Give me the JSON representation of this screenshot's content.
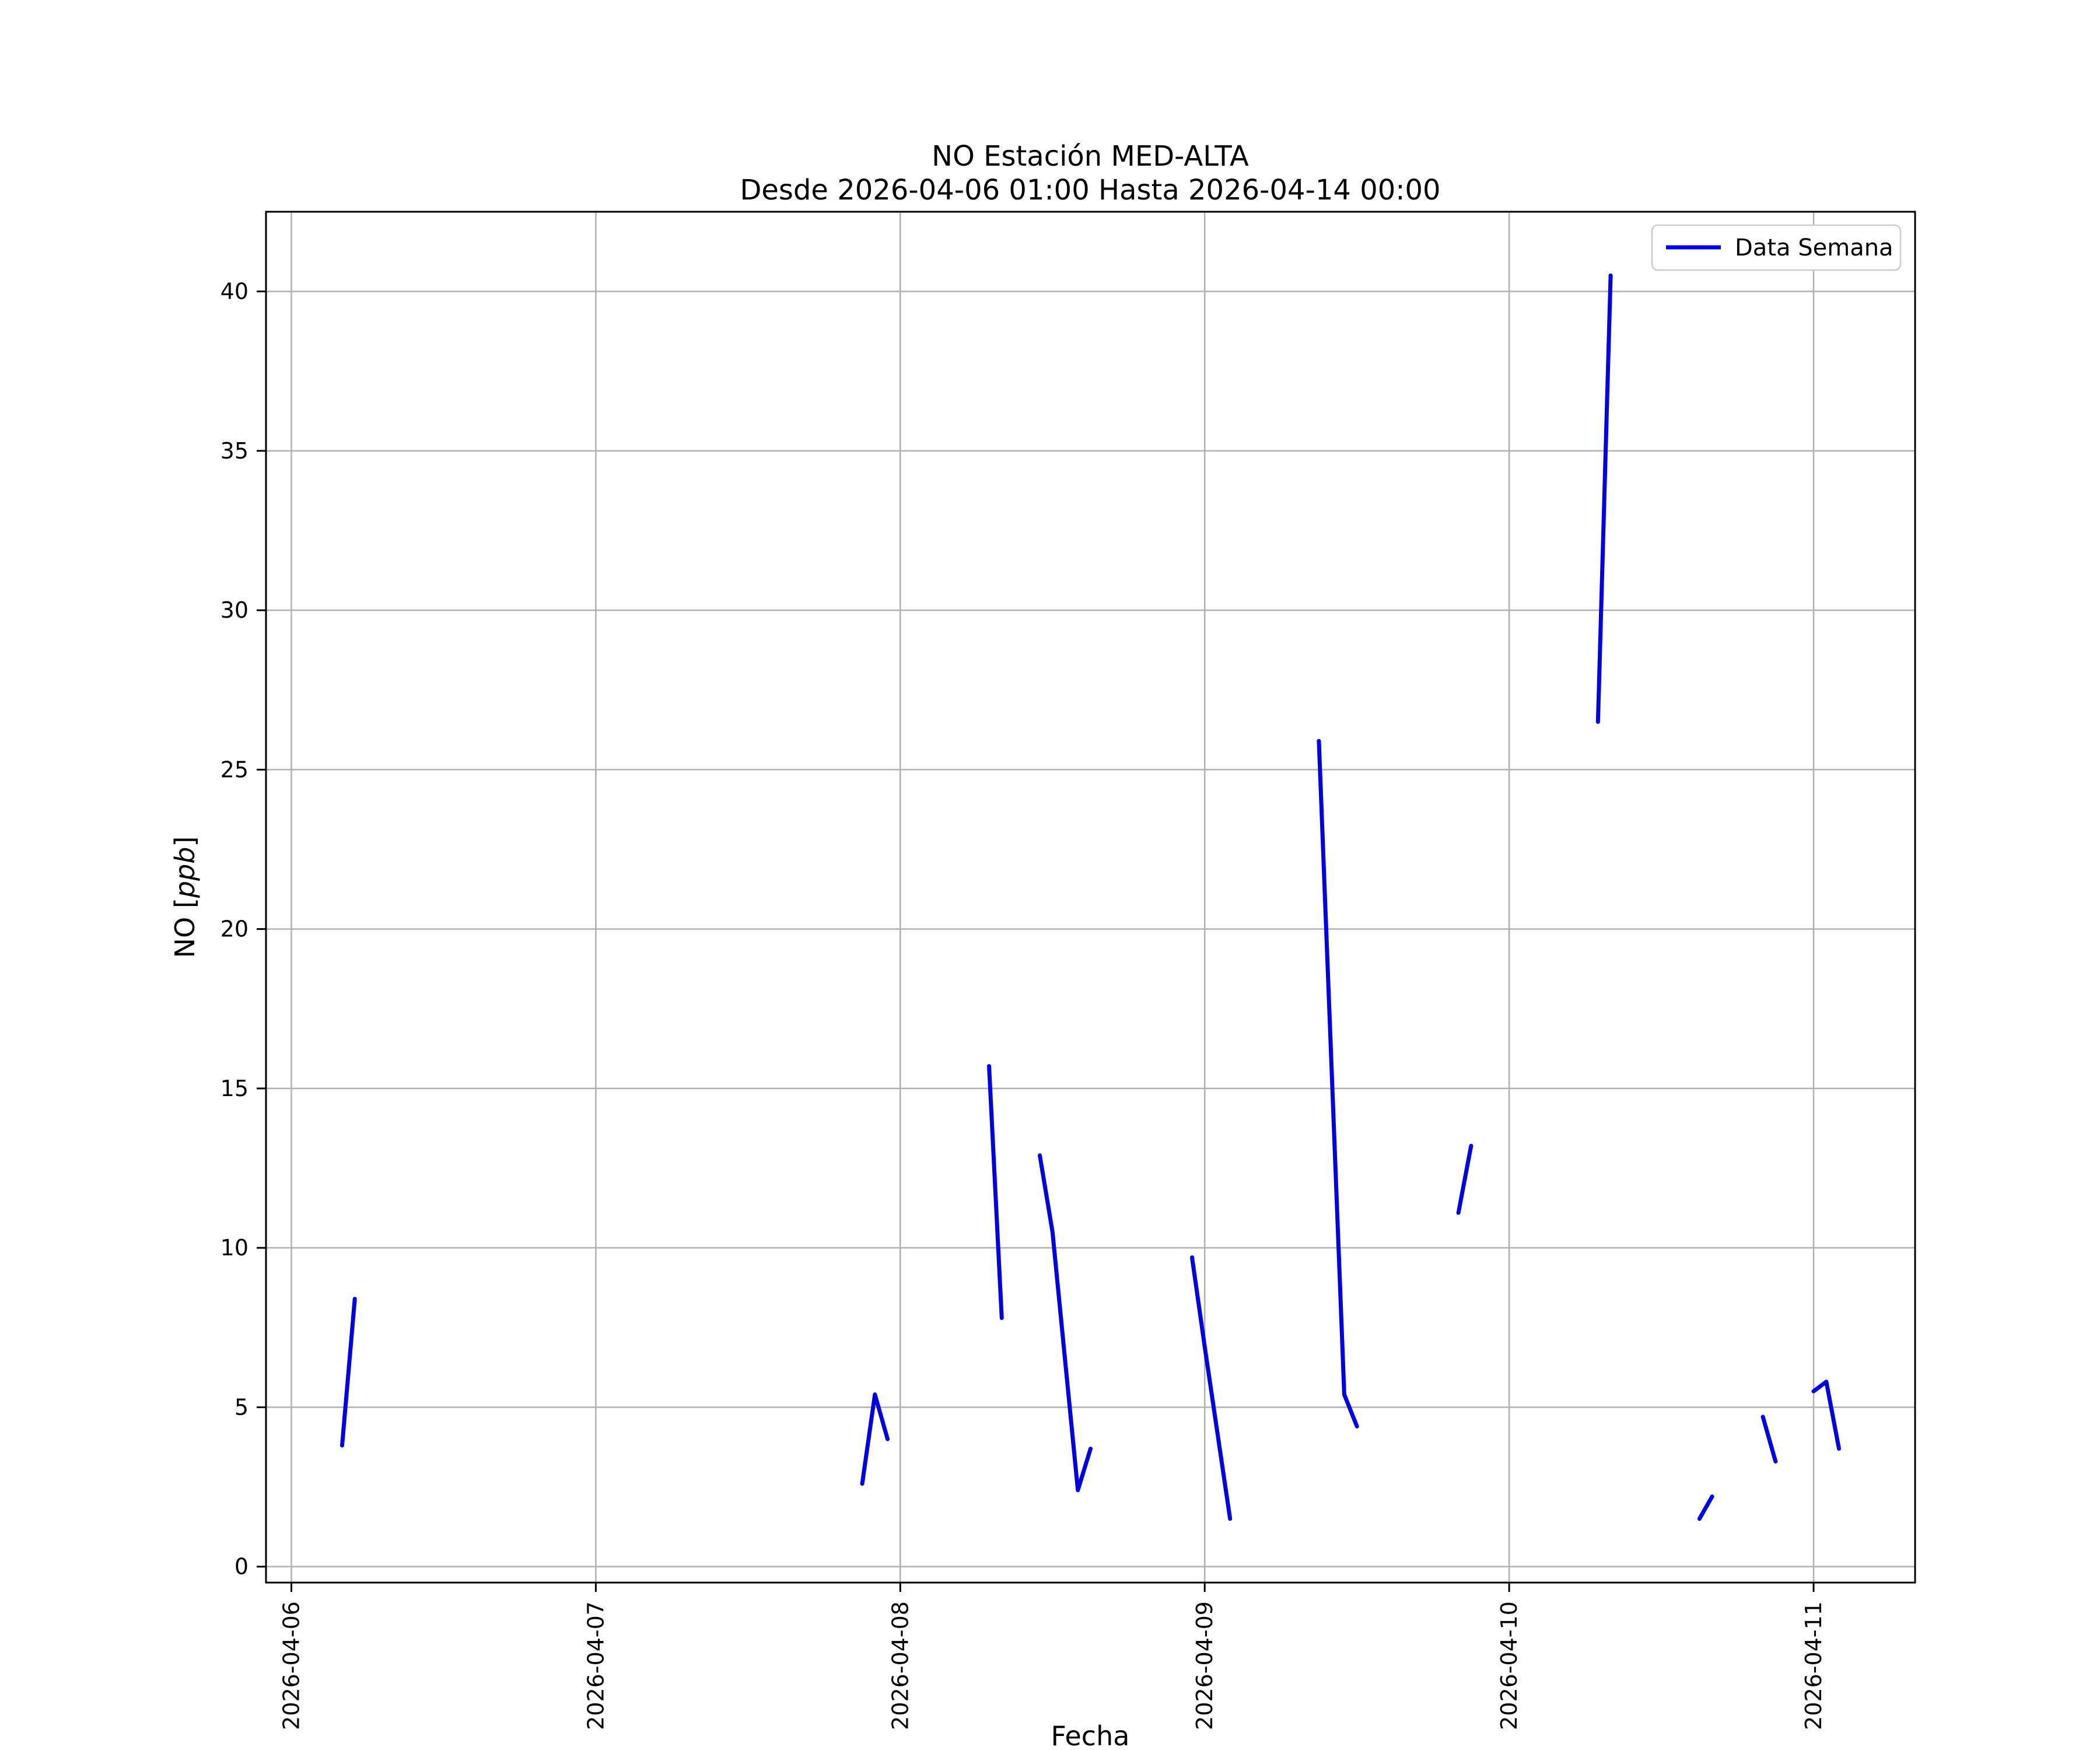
{
  "chart": {
    "title": "NO Estación MED-ALTA",
    "subtitle": "Desde 2026-04-06 01:00 Hasta 2026-04-14 00:00",
    "xlabel": "Fecha",
    "ylabel_parts": [
      {
        "text": "NO [",
        "italic": false
      },
      {
        "text": "ppb",
        "italic": true
      },
      {
        "text": "]",
        "italic": false
      }
    ],
    "legend_label": "Data Semana",
    "line_color": "#0000e6",
    "grid_color": "#b0b0b0"
  },
  "chart_data": {
    "type": "line",
    "title": "NO Estación MED-ALTA",
    "subtitle": "Desde 2026-04-06 01:00 Hasta 2026-04-14 00:00",
    "xlabel": "Fecha",
    "ylabel": "NO [ppb]",
    "series_name": "Data Semana",
    "grid": true,
    "legend_position": "upper right",
    "x_unit": "hours since 2026-04-06 00:00",
    "xlim": [
      -2,
      128
    ],
    "ylim": [
      -0.5,
      42.5
    ],
    "yticks": [
      0,
      5,
      10,
      15,
      20,
      25,
      30,
      35,
      40
    ],
    "xticks": [
      {
        "t": 0,
        "label": "2026-04-06"
      },
      {
        "t": 24,
        "label": "2026-04-07"
      },
      {
        "t": 48,
        "label": "2026-04-08"
      },
      {
        "t": 72,
        "label": "2026-04-09"
      },
      {
        "t": 96,
        "label": "2026-04-10"
      },
      {
        "t": 120,
        "label": "2026-04-11"
      }
    ],
    "segments": [
      [
        [
          4,
          3.8
        ],
        [
          5,
          8.4
        ]
      ],
      [
        [
          45,
          2.6
        ],
        [
          46,
          5.4
        ],
        [
          47,
          4.0
        ]
      ],
      [
        [
          55,
          15.7
        ],
        [
          56,
          7.8
        ]
      ],
      [
        [
          59,
          12.9
        ],
        [
          60,
          10.5
        ],
        [
          62,
          2.4
        ],
        [
          63,
          3.7
        ]
      ],
      [
        [
          71,
          9.7
        ],
        [
          72,
          6.9
        ],
        [
          74,
          1.5
        ]
      ],
      [
        [
          81,
          25.9
        ],
        [
          83,
          5.4
        ],
        [
          84,
          4.4
        ]
      ],
      [
        [
          92,
          11.1
        ],
        [
          93,
          13.2
        ]
      ],
      [
        [
          103,
          26.5
        ],
        [
          104,
          40.5
        ]
      ],
      [
        [
          111,
          1.5
        ],
        [
          112,
          2.2
        ]
      ],
      [
        [
          116,
          4.7
        ],
        [
          117,
          3.3
        ]
      ],
      [
        [
          120,
          5.5
        ],
        [
          121,
          5.8
        ],
        [
          122,
          3.7
        ]
      ]
    ]
  }
}
